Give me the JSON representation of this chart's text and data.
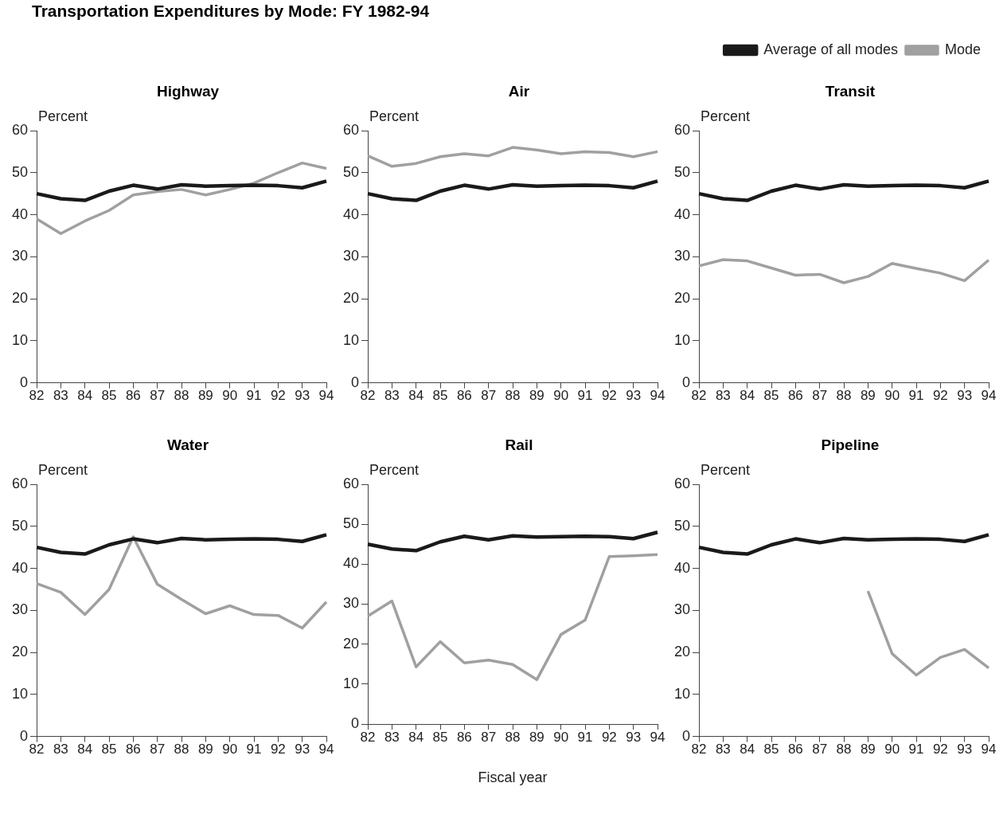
{
  "chart_data": [
    {
      "type": "line",
      "title": "Transportation Expenditures by Mode:  FY 1982-94",
      "subtitle": "Highway",
      "ylabel": "Percent",
      "categories": [
        "82",
        "83",
        "84",
        "85",
        "86",
        "87",
        "88",
        "89",
        "90",
        "91",
        "92",
        "93",
        "94"
      ],
      "ylim": [
        0,
        60
      ],
      "yticks": [
        0,
        10,
        20,
        30,
        40,
        50,
        60
      ],
      "grid": false,
      "series": [
        {
          "color": "#1a1a1a",
          "values": [
            45,
            43.8,
            43.4,
            45.6,
            47,
            46.1,
            47.1,
            46.8,
            46.9,
            47,
            46.9,
            46.4,
            48
          ]
        },
        {
          "color": "#a0a0a0",
          "values": [
            39,
            35.5,
            38.5,
            41,
            44.7,
            45.5,
            46,
            44.7,
            46,
            47.5,
            50,
            52.3,
            51
          ]
        }
      ]
    },
    {
      "type": "line",
      "subtitle": "Air",
      "ylabel": "Percent",
      "categories": [
        "82",
        "83",
        "84",
        "85",
        "86",
        "87",
        "88",
        "89",
        "90",
        "91",
        "92",
        "93",
        "94"
      ],
      "ylim": [
        0,
        60
      ],
      "yticks": [
        0,
        10,
        20,
        30,
        40,
        50,
        60
      ],
      "grid": false,
      "series": [
        {
          "color": "#1a1a1a",
          "values": [
            45,
            43.8,
            43.4,
            45.6,
            47,
            46.1,
            47.1,
            46.8,
            46.9,
            47,
            46.9,
            46.4,
            48
          ]
        },
        {
          "color": "#a0a0a0",
          "values": [
            54,
            51.5,
            52.2,
            53.8,
            54.5,
            54,
            56,
            55.4,
            54.5,
            55,
            54.8,
            53.8,
            55
          ]
        }
      ]
    },
    {
      "type": "line",
      "subtitle": "Transit",
      "ylabel": "Percent",
      "categories": [
        "82",
        "83",
        "84",
        "85",
        "86",
        "87",
        "88",
        "89",
        "90",
        "91",
        "92",
        "93",
        "94"
      ],
      "ylim": [
        0,
        60
      ],
      "yticks": [
        0,
        10,
        20,
        30,
        40,
        50,
        60
      ],
      "grid": false,
      "legend": "top right",
      "series": [
        {
          "name": "Average of all modes",
          "color": "#1a1a1a",
          "values": [
            45,
            43.8,
            43.4,
            45.6,
            47,
            46.1,
            47.1,
            46.8,
            46.9,
            47,
            46.9,
            46.4,
            48
          ]
        },
        {
          "name": "Mode",
          "color": "#a0a0a0",
          "values": [
            27.8,
            29.3,
            29,
            27.3,
            25.6,
            25.8,
            23.8,
            25.3,
            28.4,
            27.2,
            26.1,
            24.3,
            29.2
          ]
        }
      ]
    },
    {
      "type": "line",
      "subtitle": "Water",
      "ylabel": "Percent",
      "categories": [
        "82",
        "83",
        "84",
        "85",
        "86",
        "87",
        "88",
        "89",
        "90",
        "91",
        "92",
        "93",
        "94"
      ],
      "ylim": [
        0,
        60
      ],
      "yticks": [
        0,
        10,
        20,
        30,
        40,
        50,
        60
      ],
      "grid": false,
      "series": [
        {
          "color": "#1a1a1a",
          "values": [
            45,
            43.8,
            43.4,
            45.6,
            47,
            46.1,
            47.1,
            46.8,
            46.9,
            47,
            46.9,
            46.4,
            48
          ]
        },
        {
          "color": "#a0a0a0",
          "values": [
            36.4,
            34.3,
            29,
            35,
            47.5,
            36.2,
            32.6,
            29.2,
            31.1,
            29,
            28.8,
            25.8,
            32
          ]
        }
      ]
    },
    {
      "type": "line",
      "subtitle": "Rail",
      "ylabel": "Percent",
      "xlabel": "Fiscal year",
      "categories": [
        "82",
        "83",
        "84",
        "85",
        "86",
        "87",
        "88",
        "89",
        "90",
        "91",
        "92",
        "93",
        "94"
      ],
      "ylim": [
        0,
        60
      ],
      "yticks": [
        0,
        10,
        20,
        30,
        40,
        50,
        60
      ],
      "grid": false,
      "series": [
        {
          "color": "#1a1a1a",
          "values": [
            45,
            43.8,
            43.4,
            45.6,
            47,
            46.1,
            47.1,
            46.8,
            46.9,
            47,
            46.9,
            46.4,
            48
          ]
        },
        {
          "color": "#a0a0a0",
          "values": [
            27,
            30.8,
            14.3,
            20.6,
            15.3,
            16,
            14.9,
            11.1,
            22.4,
            26,
            41.9,
            42.1,
            42.4
          ]
        }
      ]
    },
    {
      "type": "line",
      "subtitle": "Pipeline",
      "ylabel": "Percent",
      "categories": [
        "82",
        "83",
        "84",
        "85",
        "86",
        "87",
        "88",
        "89",
        "90",
        "91",
        "92",
        "93",
        "94"
      ],
      "ylim": [
        0,
        60
      ],
      "yticks": [
        0,
        10,
        20,
        30,
        40,
        50,
        60
      ],
      "grid": false,
      "series": [
        {
          "color": "#1a1a1a",
          "values": [
            45,
            43.8,
            43.4,
            45.6,
            47,
            46.1,
            47.1,
            46.8,
            46.9,
            47,
            46.9,
            46.4,
            48
          ]
        },
        {
          "color": "#a0a0a0",
          "values": [
            null,
            null,
            null,
            null,
            null,
            null,
            null,
            34.6,
            19.7,
            14.6,
            18.8,
            20.7,
            16.3
          ]
        }
      ]
    }
  ]
}
